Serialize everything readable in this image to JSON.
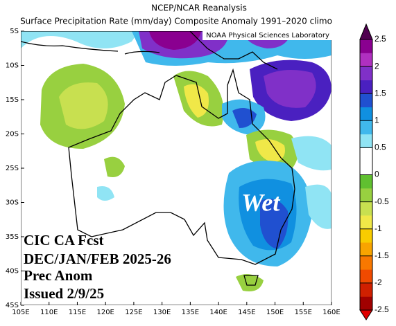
{
  "chart_data": {
    "type": "map",
    "title": "NCEP/NCAR Reanalysis",
    "subtitle": "Surface Precipitation Rate (mm/day) Composite Anomaly 1991–2020 climo",
    "credit": "NOAA Physical Sciences Laboratory",
    "annotations": [
      "Wet",
      "CIC CA Fcst",
      "DEC/JAN/FEB 2025-26",
      "Prec Anom",
      "Issued 2/9/25"
    ],
    "latlim": [
      -5,
      -45
    ],
    "lonlim": [
      105,
      160
    ],
    "latticks": [
      {
        "value": -5,
        "label": "5S"
      },
      {
        "value": -10,
        "label": "10S"
      },
      {
        "value": -15,
        "label": "15S"
      },
      {
        "value": -20,
        "label": "20S"
      },
      {
        "value": -25,
        "label": "25S"
      },
      {
        "value": -30,
        "label": "30S"
      },
      {
        "value": -35,
        "label": "35S"
      },
      {
        "value": -40,
        "label": "40S"
      },
      {
        "value": -45,
        "label": "45S"
      }
    ],
    "lonticks": [
      {
        "value": 105,
        "label": "105E"
      },
      {
        "value": 110,
        "label": "110E"
      },
      {
        "value": 115,
        "label": "115E"
      },
      {
        "value": 120,
        "label": "120E"
      },
      {
        "value": 125,
        "label": "125E"
      },
      {
        "value": 130,
        "label": "130E"
      },
      {
        "value": 135,
        "label": "135E"
      },
      {
        "value": 140,
        "label": "140E"
      },
      {
        "value": 145,
        "label": "145E"
      },
      {
        "value": 150,
        "label": "150E"
      },
      {
        "value": 155,
        "label": "155E"
      },
      {
        "value": 160,
        "label": "160E"
      }
    ],
    "colorbar": {
      "lim": [
        -2.5,
        2.5
      ],
      "ticks": [
        -2.5,
        -2,
        -1.5,
        -1,
        -0.5,
        0,
        0.5,
        1,
        1.5,
        2,
        2.5
      ],
      "colors": [
        "#a00000",
        "#d02000",
        "#f04a00",
        "#f87800",
        "#f8a400",
        "#f8cc00",
        "#f0e848",
        "#c8e050",
        "#98d040",
        "#60c030",
        "#ffffff",
        "#ffffff",
        "#90e4f4",
        "#40b8ec",
        "#1090e0",
        "#2050d0",
        "#4a20c0",
        "#8030c8",
        "#b030c0",
        "#8a0090"
      ],
      "under": "#e00000",
      "over": "#500050"
    }
  }
}
